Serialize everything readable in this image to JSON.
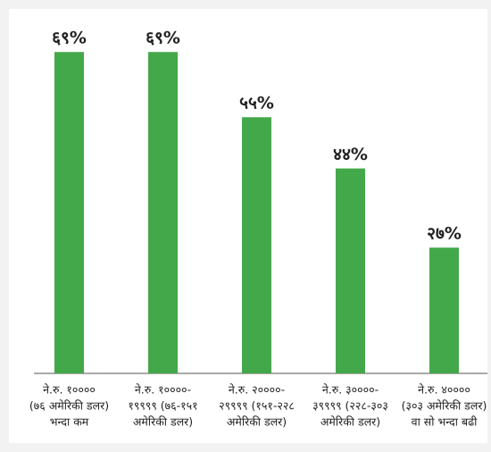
{
  "chart_data": {
    "type": "bar",
    "categories": [
      [
        "ने.रु. १००००",
        "(७६ अमेरिकी डलर)",
        "भन्दा कम"
      ],
      [
        "ने.रु. १००००-",
        "१९९९९ (७६-१५१",
        "अमेरिकी डलर)"
      ],
      [
        "ने.रु. २००००-",
        "२९९९९ (१५१-२२८",
        "अमेरिकी डलर)"
      ],
      [
        "ने.रु. ३००००-",
        "३९९९९ (२२८-३०३",
        "अमेरिकी डलर)"
      ],
      [
        "ने.रु. ४००००",
        "(३०३ अमेरिकी डलर)",
        "वा सो भन्दा बढी"
      ]
    ],
    "values": [
      69,
      69,
      55,
      44,
      27
    ],
    "value_labels": [
      "६९%",
      "६९%",
      "५५%",
      "४४%",
      "२७%"
    ],
    "color": "#43a84a",
    "ylim": [
      0,
      70
    ]
  }
}
